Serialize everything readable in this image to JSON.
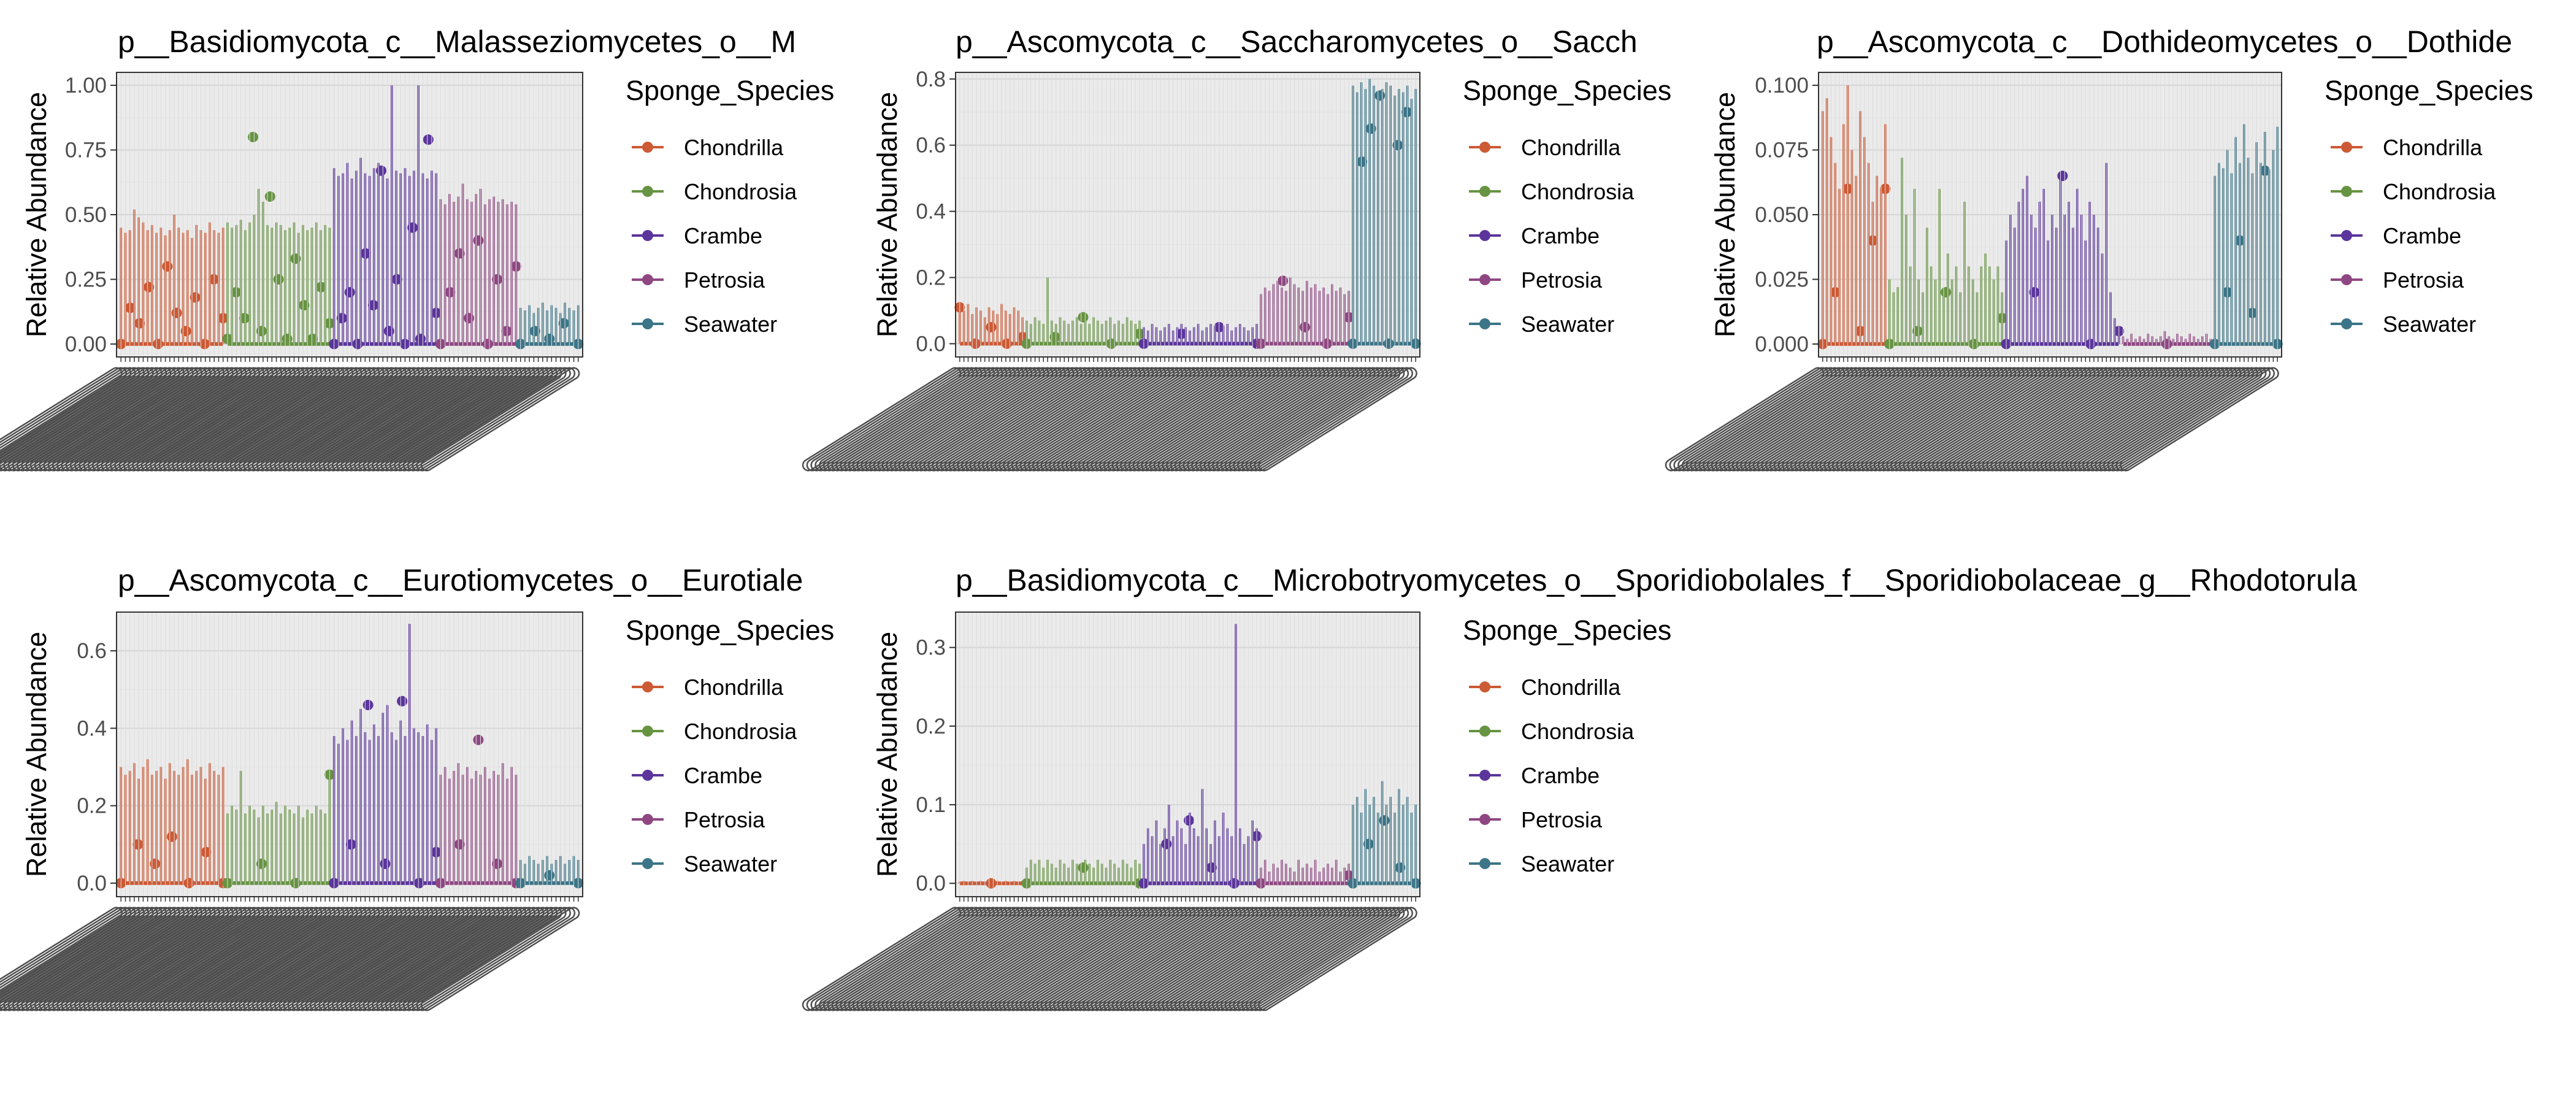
{
  "figure": {
    "legend_title": "Sponge_Species",
    "y_axis_label": "Relative Abundance"
  },
  "legend": {
    "entries": [
      {
        "name": "Chondrilla",
        "color": "#cc5a35"
      },
      {
        "name": "Chondrosia",
        "color": "#679443"
      },
      {
        "name": "Crambe",
        "color": "#5b359b"
      },
      {
        "name": "Petrosia",
        "color": "#8f4782"
      },
      {
        "name": "Seawater",
        "color": "#3c7587"
      }
    ]
  },
  "chart_data": [
    {
      "type": "bar",
      "title": "p__Basidiomycota_c__Malasseziomycetes_o__M",
      "ylabel": "Relative Abundance",
      "ylim": [
        -0.05,
        1.05
      ],
      "yticks": [
        0.0,
        0.25,
        0.5,
        0.75,
        1.0
      ],
      "ytick_labels": [
        "0.00",
        "0.25",
        "0.50",
        "0.75",
        "1.00"
      ],
      "grid": true,
      "legend_position": "right",
      "series": [
        {
          "name": "Chondrilla",
          "n": 24,
          "max": [
            0.45,
            0.43,
            0.44,
            0.52,
            0.49,
            0.47,
            0.44,
            0.46,
            0.43,
            0.45,
            0.42,
            0.44,
            0.5,
            0.45,
            0.43,
            0.44,
            0.41,
            0.46,
            0.44,
            0.43,
            0.47,
            0.44,
            0.43,
            0.45
          ],
          "points": [
            0.0,
            0.14,
            0.08,
            0.22,
            0.0,
            0.3,
            0.12,
            0.05,
            0.18,
            0.0,
            0.25,
            0.1
          ]
        },
        {
          "name": "Chondrosia",
          "n": 24,
          "max": [
            0.47,
            0.45,
            0.46,
            0.48,
            0.44,
            0.47,
            0.5,
            0.6,
            0.55,
            0.46,
            0.45,
            0.47,
            0.46,
            0.44,
            0.45,
            0.47,
            0.43,
            0.46,
            0.44,
            0.45,
            0.47,
            0.44,
            0.46,
            0.45
          ],
          "points": [
            0.02,
            0.2,
            0.1,
            0.8,
            0.05,
            0.57,
            0.25,
            0.02,
            0.33,
            0.15,
            0.02,
            0.22,
            0.08
          ]
        },
        {
          "name": "Crambe",
          "n": 24,
          "max": [
            0.68,
            0.65,
            0.66,
            0.7,
            0.64,
            0.67,
            0.72,
            0.66,
            0.65,
            0.68,
            0.7,
            0.66,
            0.64,
            1.0,
            0.67,
            0.66,
            0.68,
            0.65,
            0.67,
            1.0,
            0.66,
            0.64,
            0.67,
            0.66
          ],
          "points": [
            0.0,
            0.1,
            0.2,
            0.0,
            0.35,
            0.15,
            0.67,
            0.05,
            0.25,
            0.0,
            0.45,
            0.02,
            0.79,
            0.12
          ]
        },
        {
          "name": "Petrosia",
          "n": 18,
          "max": [
            0.56,
            0.54,
            0.58,
            0.55,
            0.57,
            0.62,
            0.56,
            0.55,
            0.58,
            0.6,
            0.54,
            0.56,
            0.57,
            0.55,
            0.56,
            0.54,
            0.55,
            0.54
          ],
          "points": [
            0.0,
            0.2,
            0.35,
            0.1,
            0.4,
            0.0,
            0.25,
            0.05,
            0.3
          ]
        },
        {
          "name": "Seawater",
          "n": 14,
          "max": [
            0.14,
            0.13,
            0.15,
            0.12,
            0.14,
            0.16,
            0.13,
            0.15,
            0.14,
            0.12,
            0.16,
            0.14,
            0.13,
            0.15
          ],
          "points": [
            0.0,
            0.05,
            0.02,
            0.08,
            0.0
          ]
        }
      ]
    },
    {
      "type": "bar",
      "title": "p__Ascomycota_c__Saccharomycetes_o__Sacch",
      "ylabel": "Relative Abundance",
      "ylim": [
        -0.04,
        0.82
      ],
      "yticks": [
        0.0,
        0.2,
        0.4,
        0.6,
        0.8
      ],
      "ytick_labels": [
        "0.0",
        "0.2",
        "0.4",
        "0.6",
        "0.8"
      ],
      "grid": true,
      "legend_position": "right",
      "series": [
        {
          "name": "Chondrilla",
          "n": 16,
          "max": [
            0.11,
            0.1,
            0.12,
            0.09,
            0.11,
            0.1,
            0.08,
            0.11,
            0.1,
            0.09,
            0.12,
            0.1,
            0.09,
            0.11,
            0.1,
            0.08
          ],
          "points": [
            0.11,
            0.0,
            0.05,
            0.0,
            0.02
          ]
        },
        {
          "name": "Chondrosia",
          "n": 28,
          "max": [
            0.07,
            0.06,
            0.08,
            0.07,
            0.06,
            0.2,
            0.07,
            0.06,
            0.08,
            0.07,
            0.06,
            0.07,
            0.08,
            0.06,
            0.07,
            0.06,
            0.08,
            0.07,
            0.06,
            0.07,
            0.08,
            0.06,
            0.07,
            0.06,
            0.08,
            0.07,
            0.06,
            0.07
          ],
          "points": [
            0.0,
            0.02,
            0.08,
            0.0,
            0.03
          ]
        },
        {
          "name": "Crambe",
          "n": 28,
          "max": [
            0.05,
            0.04,
            0.06,
            0.05,
            0.04,
            0.05,
            0.06,
            0.04,
            0.05,
            0.06,
            0.05,
            0.04,
            0.05,
            0.06,
            0.04,
            0.05,
            0.06,
            0.05,
            0.04,
            0.05,
            0.06,
            0.04,
            0.05,
            0.06,
            0.05,
            0.04,
            0.05,
            0.06
          ],
          "points": [
            0.0,
            0.03,
            0.05,
            0.0
          ]
        },
        {
          "name": "Petrosia",
          "n": 22,
          "max": [
            0.15,
            0.17,
            0.16,
            0.18,
            0.19,
            0.17,
            0.16,
            0.2,
            0.18,
            0.17,
            0.16,
            0.19,
            0.17,
            0.18,
            0.16,
            0.17,
            0.15,
            0.18,
            0.16,
            0.17,
            0.15,
            0.16
          ],
          "points": [
            0.0,
            0.19,
            0.05,
            0.0,
            0.08
          ]
        },
        {
          "name": "Seawater",
          "n": 16,
          "max": [
            0.78,
            0.76,
            0.79,
            0.77,
            0.8,
            0.78,
            0.76,
            0.77,
            0.79,
            0.78,
            0.75,
            0.77,
            0.76,
            0.78,
            0.74,
            0.77
          ],
          "points": [
            0.0,
            0.55,
            0.65,
            0.75,
            0.0,
            0.6,
            0.7,
            0.0
          ]
        }
      ]
    },
    {
      "type": "bar",
      "title": "p__Ascomycota_c__Dothideomycetes_o__Dothide",
      "ylabel": "Relative Abundance",
      "ylim": [
        -0.005,
        0.105
      ],
      "yticks": [
        0.0,
        0.025,
        0.05,
        0.075,
        0.1
      ],
      "ytick_labels": [
        "0.000",
        "0.025",
        "0.050",
        "0.075",
        "0.100"
      ],
      "grid": true,
      "legend_position": "right",
      "series": [
        {
          "name": "Chondrilla",
          "n": 16,
          "max": [
            0.09,
            0.095,
            0.08,
            0.07,
            0.06,
            0.085,
            0.1,
            0.075,
            0.065,
            0.09,
            0.08,
            0.07,
            0.055,
            0.065,
            0.06,
            0.085
          ],
          "points": [
            0.0,
            0.02,
            0.06,
            0.005,
            0.04,
            0.06
          ]
        },
        {
          "name": "Chondrosia",
          "n": 28,
          "max": [
            0.025,
            0.02,
            0.022,
            0.072,
            0.05,
            0.03,
            0.06,
            0.025,
            0.02,
            0.045,
            0.03,
            0.025,
            0.06,
            0.02,
            0.035,
            0.025,
            0.03,
            0.02,
            0.055,
            0.03,
            0.025,
            0.02,
            0.03,
            0.035,
            0.03,
            0.025,
            0.03,
            0.02
          ],
          "points": [
            0.0,
            0.005,
            0.02,
            0.0,
            0.01
          ]
        },
        {
          "name": "Crambe",
          "n": 28,
          "max": [
            0.04,
            0.05,
            0.045,
            0.055,
            0.06,
            0.065,
            0.05,
            0.045,
            0.055,
            0.06,
            0.04,
            0.05,
            0.045,
            0.065,
            0.05,
            0.055,
            0.045,
            0.06,
            0.05,
            0.04,
            0.055,
            0.05,
            0.045,
            0.035,
            0.07,
            0.02,
            0.01,
            0.005
          ],
          "points": [
            0.0,
            0.02,
            0.065,
            0.0,
            0.005
          ]
        },
        {
          "name": "Petrosia",
          "n": 22,
          "max": [
            0.003,
            0.002,
            0.004,
            0.002,
            0.003,
            0.002,
            0.004,
            0.003,
            0.002,
            0.003,
            0.005,
            0.003,
            0.002,
            0.004,
            0.003,
            0.002,
            0.004,
            0.003,
            0.002,
            0.003,
            0.004,
            0.002
          ],
          "points": [
            0.0
          ]
        },
        {
          "name": "Seawater",
          "n": 16,
          "max": [
            0.065,
            0.07,
            0.068,
            0.075,
            0.066,
            0.08,
            0.07,
            0.085,
            0.072,
            0.066,
            0.078,
            0.07,
            0.082,
            0.067,
            0.075,
            0.084
          ],
          "points": [
            0.0,
            0.02,
            0.04,
            0.012,
            0.067,
            0.0
          ]
        }
      ]
    },
    {
      "type": "bar",
      "title": "p__Ascomycota_c__Eurotiomycetes_o__Eurotiale",
      "ylabel": "Relative Abundance",
      "ylim": [
        -0.035,
        0.7
      ],
      "yticks": [
        0.0,
        0.2,
        0.4,
        0.6
      ],
      "ytick_labels": [
        "0.0",
        "0.2",
        "0.4",
        "0.6"
      ],
      "grid": true,
      "legend_position": "right",
      "series": [
        {
          "name": "Chondrilla",
          "n": 24,
          "max": [
            0.3,
            0.28,
            0.29,
            0.31,
            0.27,
            0.3,
            0.32,
            0.28,
            0.29,
            0.3,
            0.27,
            0.31,
            0.29,
            0.28,
            0.3,
            0.32,
            0.28,
            0.29,
            0.3,
            0.27,
            0.31,
            0.29,
            0.28,
            0.3
          ],
          "points": [
            0.0,
            0.1,
            0.05,
            0.12,
            0.0,
            0.08,
            0.0
          ]
        },
        {
          "name": "Chondrosia",
          "n": 24,
          "max": [
            0.18,
            0.2,
            0.19,
            0.29,
            0.18,
            0.2,
            0.19,
            0.17,
            0.2,
            0.18,
            0.19,
            0.21,
            0.18,
            0.2,
            0.19,
            0.18,
            0.2,
            0.17,
            0.19,
            0.18,
            0.2,
            0.19,
            0.18,
            0.28
          ],
          "points": [
            0.0,
            0.05,
            0.0,
            0.28
          ]
        },
        {
          "name": "Crambe",
          "n": 24,
          "max": [
            0.38,
            0.36,
            0.4,
            0.37,
            0.42,
            0.38,
            0.45,
            0.39,
            0.37,
            0.41,
            0.38,
            0.44,
            0.46,
            0.39,
            0.37,
            0.42,
            0.38,
            0.67,
            0.4,
            0.39,
            0.38,
            0.41,
            0.37,
            0.4
          ],
          "points": [
            0.0,
            0.1,
            0.46,
            0.05,
            0.47,
            0.0,
            0.08
          ]
        },
        {
          "name": "Petrosia",
          "n": 18,
          "max": [
            0.28,
            0.3,
            0.27,
            0.29,
            0.31,
            0.28,
            0.3,
            0.27,
            0.29,
            0.28,
            0.3,
            0.27,
            0.29,
            0.28,
            0.31,
            0.27,
            0.3,
            0.28
          ],
          "points": [
            0.0,
            0.1,
            0.37,
            0.05,
            0.0
          ]
        },
        {
          "name": "Seawater",
          "n": 14,
          "max": [
            0.06,
            0.05,
            0.07,
            0.06,
            0.05,
            0.06,
            0.07,
            0.05,
            0.06,
            0.07,
            0.05,
            0.06,
            0.07,
            0.06
          ],
          "points": [
            0.0,
            0.02,
            0.0
          ]
        }
      ]
    },
    {
      "type": "bar",
      "title": "p__Basidiomycota_c__Microbotryomycetes_o__Sporidiobolales_f__Sporidiobolaceae_g__Rhodotorula",
      "ylabel": "Relative Abundance",
      "ylim": [
        -0.017,
        0.345
      ],
      "yticks": [
        0.0,
        0.1,
        0.2,
        0.3
      ],
      "ytick_labels": [
        "0.0",
        "0.1",
        "0.2",
        "0.3"
      ],
      "grid": true,
      "legend_position": "right",
      "series": [
        {
          "name": "Chondrilla",
          "n": 16,
          "max": [
            0.002,
            0.003,
            0.002,
            0.003,
            0.002,
            0.003,
            0.002,
            0.003,
            0.002,
            0.003,
            0.002,
            0.003,
            0.002,
            0.003,
            0.002,
            0.003
          ],
          "points": [
            0.0
          ]
        },
        {
          "name": "Chondrosia",
          "n": 28,
          "max": [
            0.02,
            0.03,
            0.025,
            0.03,
            0.02,
            0.03,
            0.025,
            0.02,
            0.03,
            0.025,
            0.02,
            0.03,
            0.025,
            0.02,
            0.03,
            0.025,
            0.02,
            0.03,
            0.025,
            0.02,
            0.03,
            0.025,
            0.02,
            0.03,
            0.025,
            0.02,
            0.03,
            0.025
          ],
          "points": [
            0.0,
            0.02,
            0.0
          ]
        },
        {
          "name": "Crambe",
          "n": 28,
          "max": [
            0.05,
            0.07,
            0.06,
            0.08,
            0.05,
            0.07,
            0.1,
            0.06,
            0.08,
            0.07,
            0.05,
            0.09,
            0.07,
            0.06,
            0.12,
            0.07,
            0.05,
            0.08,
            0.06,
            0.09,
            0.07,
            0.06,
            0.33,
            0.07,
            0.05,
            0.06,
            0.08,
            0.07
          ],
          "points": [
            0.0,
            0.05,
            0.08,
            0.02,
            0.0,
            0.06
          ]
        },
        {
          "name": "Petrosia",
          "n": 22,
          "max": [
            0.02,
            0.03,
            0.015,
            0.025,
            0.02,
            0.03,
            0.025,
            0.02,
            0.015,
            0.03,
            0.02,
            0.025,
            0.02,
            0.03,
            0.015,
            0.02,
            0.025,
            0.02,
            0.03,
            0.015,
            0.02,
            0.025
          ],
          "points": [
            0.0,
            0.01
          ]
        },
        {
          "name": "Seawater",
          "n": 16,
          "max": [
            0.1,
            0.11,
            0.09,
            0.12,
            0.1,
            0.11,
            0.09,
            0.13,
            0.1,
            0.11,
            0.09,
            0.12,
            0.1,
            0.11,
            0.09,
            0.1
          ],
          "points": [
            0.0,
            0.05,
            0.08,
            0.02,
            0.0
          ]
        }
      ]
    }
  ]
}
